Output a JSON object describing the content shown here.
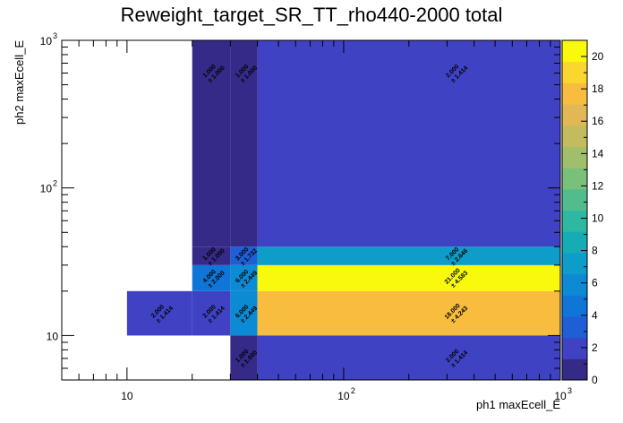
{
  "chart_data": {
    "type": "heatmap",
    "title": "Reweight_target_SR_TT_rho440-2000 total",
    "xlabel": "ph1 maxEcell_E",
    "ylabel": "ph2 maxEcell_E",
    "x_scale": "log",
    "y_scale": "log",
    "xlim": [
      5,
      1000
    ],
    "ylim": [
      5,
      1000
    ],
    "x_tick_labels": [
      "10",
      "10",
      "10"
    ],
    "x_tick_exponents": [
      "",
      "2",
      "3"
    ],
    "y_tick_labels": [
      "10",
      "10",
      "10"
    ],
    "y_tick_exponents": [
      "",
      "2",
      "3"
    ],
    "colorbar": {
      "min": 0,
      "max": 21,
      "ticks": [
        "0",
        "2",
        "4",
        "6",
        "8",
        "10",
        "12",
        "14",
        "16",
        "18",
        "20"
      ]
    },
    "cells": [
      {
        "x": [
          10,
          20
        ],
        "y": [
          10,
          20
        ],
        "value": 2,
        "label": "2.000",
        "error": "± 1.414"
      },
      {
        "x": [
          20,
          30
        ],
        "y": [
          10,
          20
        ],
        "value": 2,
        "label": "2.000",
        "error": "± 1.414"
      },
      {
        "x": [
          30,
          40
        ],
        "y": [
          10,
          20
        ],
        "value": 6,
        "label": "6.000",
        "error": "± 2.449"
      },
      {
        "x": [
          40,
          1000
        ],
        "y": [
          10,
          20
        ],
        "value": 18,
        "label": "18.000",
        "error": "± 4.243"
      },
      {
        "x": [
          30,
          40
        ],
        "y": [
          5,
          10
        ],
        "value": 1,
        "label": "1.000",
        "error": "± 1.000"
      },
      {
        "x": [
          40,
          1000
        ],
        "y": [
          5,
          10
        ],
        "value": 2,
        "label": "2.000",
        "error": "± 1.414"
      },
      {
        "x": [
          20,
          30
        ],
        "y": [
          20,
          30
        ],
        "value": 4,
        "label": "4.000",
        "error": "± 2.000"
      },
      {
        "x": [
          30,
          40
        ],
        "y": [
          20,
          30
        ],
        "value": 6,
        "label": "6.000",
        "error": "± 2.449"
      },
      {
        "x": [
          40,
          1000
        ],
        "y": [
          20,
          30
        ],
        "value": 21,
        "label": "21.000",
        "error": "± 4.583"
      },
      {
        "x": [
          20,
          30
        ],
        "y": [
          30,
          40
        ],
        "value": 1,
        "label": "1.000",
        "error": "± 1.000"
      },
      {
        "x": [
          30,
          40
        ],
        "y": [
          30,
          40
        ],
        "value": 3,
        "label": "3.000",
        "error": "± 1.732"
      },
      {
        "x": [
          40,
          1000
        ],
        "y": [
          30,
          40
        ],
        "value": 7,
        "label": "7.000",
        "error": "± 2.646"
      },
      {
        "x": [
          20,
          30
        ],
        "y": [
          40,
          1000
        ],
        "value": 1,
        "label": "1.000",
        "error": "± 1.000"
      },
      {
        "x": [
          30,
          40
        ],
        "y": [
          40,
          1000
        ],
        "value": 1,
        "label": "1.000",
        "error": "± 1.000"
      },
      {
        "x": [
          40,
          1000
        ],
        "y": [
          40,
          1000
        ],
        "value": 2,
        "label": "2.000",
        "error": "± 1.414"
      }
    ]
  }
}
